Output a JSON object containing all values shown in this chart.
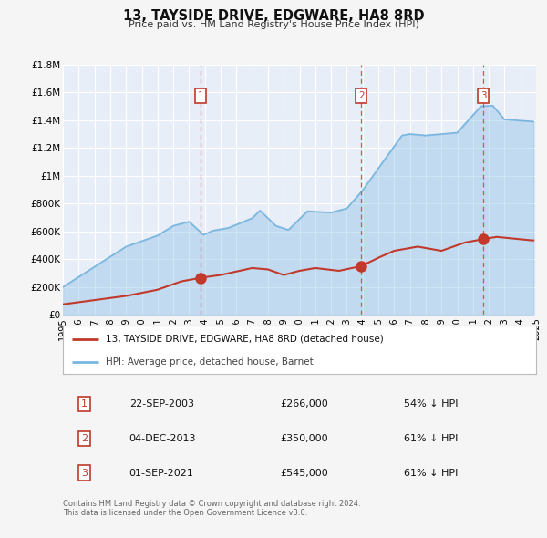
{
  "title": "13, TAYSIDE DRIVE, EDGWARE, HA8 8RD",
  "subtitle": "Price paid vs. HM Land Registry's House Price Index (HPI)",
  "background_color": "#f5f5f5",
  "plot_bg_color": "#e8eef8",
  "grid_color": "#ffffff",
  "xlim": [
    1995,
    2025
  ],
  "ylim": [
    0,
    1800000
  ],
  "ytick_labels": [
    "£0",
    "£200K",
    "£400K",
    "£600K",
    "£800K",
    "£1M",
    "£1.2M",
    "£1.4M",
    "£1.6M",
    "£1.8M"
  ],
  "ytick_values": [
    0,
    200000,
    400000,
    600000,
    800000,
    1000000,
    1200000,
    1400000,
    1600000,
    1800000
  ],
  "xtick_years": [
    1995,
    1996,
    1997,
    1998,
    1999,
    2000,
    2001,
    2002,
    2003,
    2004,
    2005,
    2006,
    2007,
    2008,
    2009,
    2010,
    2011,
    2012,
    2013,
    2014,
    2015,
    2016,
    2017,
    2018,
    2019,
    2020,
    2021,
    2022,
    2023,
    2024,
    2025
  ],
  "hpi_color": "#7ab6e0",
  "price_color": "#c0392b",
  "marker_color": "#c0392b",
  "sale_dates": [
    2003.72,
    2013.92,
    2021.67
  ],
  "sale_prices": [
    266000,
    350000,
    545000
  ],
  "vline_color": "#e05050",
  "label_box_color": "#c0392b",
  "legend_label_price": "13, TAYSIDE DRIVE, EDGWARE, HA8 8RD (detached house)",
  "legend_label_hpi": "HPI: Average price, detached house, Barnet",
  "table_data": [
    {
      "num": "1",
      "date": "22-SEP-2003",
      "price": "£266,000",
      "pct": "54% ↓ HPI"
    },
    {
      "num": "2",
      "date": "04-DEC-2013",
      "price": "£350,000",
      "pct": "61% ↓ HPI"
    },
    {
      "num": "3",
      "date": "01-SEP-2021",
      "price": "£545,000",
      "pct": "61% ↓ HPI"
    }
  ],
  "footer": "Contains HM Land Registry data © Crown copyright and database right 2024.\nThis data is licensed under the Open Government Licence v3.0."
}
